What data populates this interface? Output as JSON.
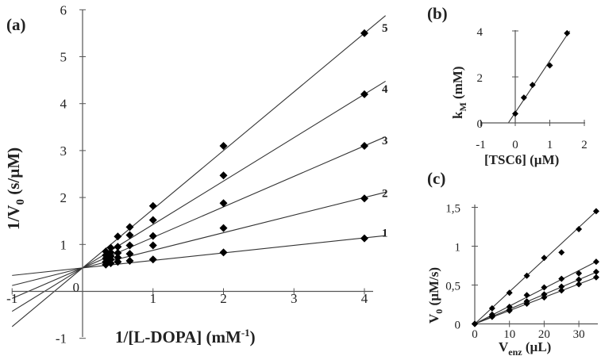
{
  "chart_data": [
    {
      "id": "a",
      "type": "scatter",
      "panel_label": "(a)",
      "title": "",
      "xlabel": "1/[L-DOPA] (mM",
      "xlabel_sup": "-1",
      "xlabel_end": ")",
      "ylabel": "1/V",
      "ylabel_sub": "0",
      "ylabel_end": " (s/µM)",
      "xlim": [
        -1,
        4.3
      ],
      "ylim": [
        -1,
        6
      ],
      "xticks": [
        "-1",
        "0",
        "1",
        "2",
        "3",
        "4"
      ],
      "yticks": [
        "-1",
        "0",
        "1",
        "2",
        "3",
        "4",
        "5",
        "6"
      ],
      "fit_lines": true,
      "marker": "diamond",
      "series": [
        {
          "name": "1",
          "x": [
            0.33,
            0.4,
            0.5,
            0.67,
            1,
            2,
            4
          ],
          "y": [
            0.57,
            0.6,
            0.63,
            0.65,
            0.68,
            0.83,
            1.13
          ],
          "intercept": 0.5,
          "slope": 0.16
        },
        {
          "name": "2",
          "x": [
            0.33,
            0.4,
            0.5,
            0.67,
            1,
            2,
            4
          ],
          "y": [
            0.63,
            0.68,
            0.72,
            0.8,
            0.98,
            1.35,
            1.98
          ],
          "intercept": 0.5,
          "slope": 0.375
        },
        {
          "name": "3",
          "x": [
            0.33,
            0.4,
            0.5,
            0.67,
            1,
            2,
            4
          ],
          "y": [
            0.7,
            0.75,
            0.82,
            0.98,
            1.18,
            1.88,
            3.1
          ],
          "intercept": 0.5,
          "slope": 0.65
        },
        {
          "name": "4",
          "x": [
            0.33,
            0.4,
            0.5,
            0.67,
            1,
            2,
            4
          ],
          "y": [
            0.77,
            0.83,
            0.95,
            1.2,
            1.52,
            2.47,
            4.2
          ],
          "intercept": 0.5,
          "slope": 0.925
        },
        {
          "name": "5",
          "x": [
            0.33,
            0.4,
            0.5,
            0.67,
            1,
            2,
            4
          ],
          "y": [
            0.85,
            0.93,
            1.17,
            1.37,
            1.82,
            3.1,
            5.5
          ],
          "intercept": 0.5,
          "slope": 1.25
        }
      ]
    },
    {
      "id": "b",
      "type": "scatter",
      "panel_label": "(b)",
      "title": "",
      "xlabel": "[TSC6] (µM)",
      "ylabel": "k",
      "ylabel_sub": "M",
      "ylabel_end": " (mM)",
      "xlim": [
        -1,
        2
      ],
      "ylim": [
        0,
        4
      ],
      "xticks": [
        "-1",
        "0",
        "1",
        "2"
      ],
      "yticks": [
        "0",
        "2",
        "4"
      ],
      "fit_lines": true,
      "marker": "diamond",
      "series": [
        {
          "name": "kM",
          "x": [
            0,
            0.25,
            0.5,
            1,
            1.5
          ],
          "y": [
            0.4,
            1.1,
            1.65,
            2.5,
            3.9
          ],
          "intercept": 0.45,
          "slope": 2.25
        }
      ]
    },
    {
      "id": "c",
      "type": "scatter",
      "panel_label": "(c)",
      "title": "",
      "xlabel": "V",
      "xlabel_sub": "enz",
      "xlabel_end": " (µL)",
      "ylabel": "V",
      "ylabel_sub": "0",
      "ylabel_end": " (µM/s)",
      "xlim": [
        0,
        35
      ],
      "ylim": [
        0,
        1.5
      ],
      "xticks": [
        "0",
        "10",
        "20",
        "30"
      ],
      "yticks": [
        "0",
        "0,5",
        "1",
        "1,5"
      ],
      "fit_lines": true,
      "marker": "diamond",
      "series": [
        {
          "name": "top",
          "x": [
            0,
            5,
            10,
            15,
            20,
            25,
            30,
            35
          ],
          "y": [
            0,
            0.2,
            0.4,
            0.62,
            0.85,
            0.92,
            1.22,
            1.45
          ],
          "intercept": 0,
          "slope": 0.0414
        },
        {
          "name": "s2",
          "x": [
            0,
            5,
            10,
            15,
            20,
            25,
            30,
            35
          ],
          "y": [
            0,
            0.12,
            0.22,
            0.37,
            0.47,
            0.58,
            0.65,
            0.8
          ],
          "intercept": 0,
          "slope": 0.0229
        },
        {
          "name": "s3",
          "x": [
            0,
            5,
            10,
            15,
            20,
            25,
            30,
            35
          ],
          "y": [
            0,
            0.1,
            0.18,
            0.29,
            0.38,
            0.48,
            0.57,
            0.67
          ],
          "intercept": 0,
          "slope": 0.019
        },
        {
          "name": "s4",
          "x": [
            0,
            5,
            10,
            15,
            20,
            25,
            30,
            35
          ],
          "y": [
            0,
            0.09,
            0.17,
            0.26,
            0.34,
            0.43,
            0.51,
            0.6
          ],
          "intercept": 0,
          "slope": 0.0171
        }
      ]
    }
  ]
}
